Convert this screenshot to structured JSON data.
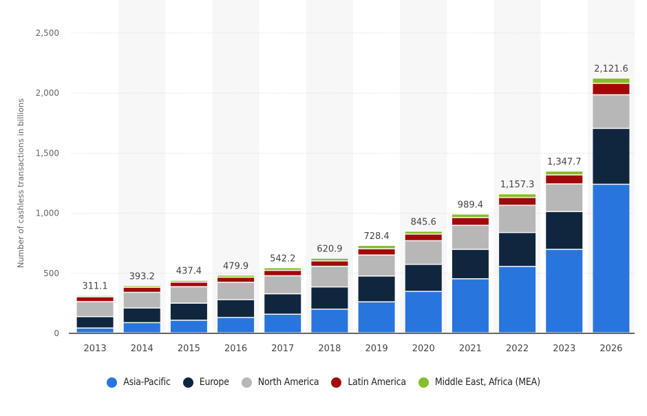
{
  "chart_data": {
    "type": "bar",
    "stacked": true,
    "title": "",
    "xlabel": "",
    "ylabel": "Number of cashless transactions in billions",
    "ylim": [
      0,
      2500
    ],
    "yticks": [
      0,
      500,
      1000,
      1500,
      2000,
      2500
    ],
    "ytick_labels": [
      "0",
      "500",
      "1,000",
      "1,500",
      "2,000",
      "2,500"
    ],
    "grid": true,
    "legend_position": "bottom",
    "categories": [
      "2013",
      "2014",
      "2015",
      "2016",
      "2017",
      "2018",
      "2019",
      "2020",
      "2021",
      "2022",
      "2023",
      "2026"
    ],
    "totals": [
      311.1,
      393.2,
      437.4,
      479.9,
      542.2,
      620.9,
      728.4,
      845.6,
      989.4,
      1157.3,
      1347.7,
      2121.6
    ],
    "total_labels": [
      "311.1",
      "393.2",
      "437.4",
      "479.9",
      "542.2",
      "620.9",
      "728.4",
      "845.6",
      "989.4",
      "1,157.3",
      "1,347.7",
      "2,121.6"
    ],
    "series": [
      {
        "name": "Asia-Pacific",
        "color": "#2876dd",
        "values": [
          40,
          85,
          105,
          128,
          155,
          197,
          258,
          345,
          450,
          553,
          695,
          1237
        ]
      },
      {
        "name": "Europe",
        "color": "#10263e",
        "values": [
          95,
          122,
          142,
          148,
          170,
          185,
          215,
          225,
          245,
          282,
          315,
          465
        ]
      },
      {
        "name": "North America",
        "color": "#b7b7b7",
        "values": [
          125,
          130,
          137,
          145,
          150,
          172,
          175,
          197,
          200,
          227,
          230,
          280
        ]
      },
      {
        "name": "Latin America",
        "color": "#a20a0a",
        "values": [
          40,
          42,
          38,
          42,
          45,
          45,
          52,
          55,
          65,
          65,
          75,
          95
        ]
      },
      {
        "name": "Middle East, Africa (MEA)",
        "color": "#86bd2a",
        "values": [
          11,
          14,
          15,
          17,
          22,
          22,
          28,
          24,
          29,
          30,
          32,
          44
        ]
      }
    ]
  },
  "legend": {
    "items": [
      {
        "label": "Asia-Pacific",
        "color": "#2876dd"
      },
      {
        "label": "Europe",
        "color": "#10263e"
      },
      {
        "label": "North America",
        "color": "#b7b7b7"
      },
      {
        "label": "Latin America",
        "color": "#a20a0a"
      },
      {
        "label": "Middle East, Africa (MEA)",
        "color": "#86bd2a"
      }
    ]
  }
}
